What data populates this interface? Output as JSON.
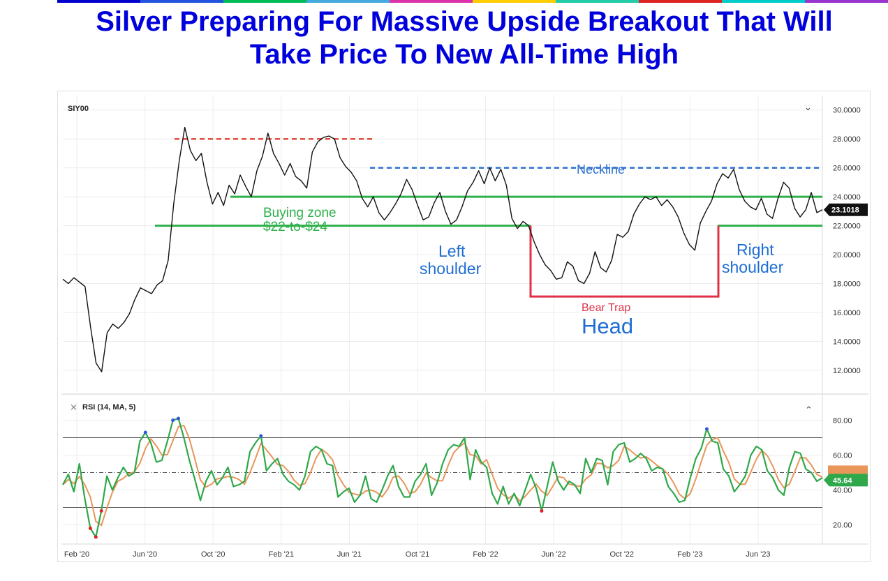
{
  "headline": {
    "line1": "Silver Preparing For Massive Upside Breakout That Will",
    "line2": "Take Price To New All-Time High"
  },
  "colors": {
    "headline": "#0000dd",
    "price_line": "#111111",
    "rsi_line": "#2ea84a",
    "rsi_ma": "#e8965a",
    "buy_zone": "#2db04a",
    "resistance": "#e05040",
    "neckline": "#2a6fd0",
    "bear_trap": "#e03048",
    "annotation_blue": "#1f6ed4",
    "top_bar": [
      "#0000cc",
      "#2255dd",
      "#00bb55",
      "#44aadd",
      "#dd33aa",
      "#ffcc00",
      "#22ccaa",
      "#dd2222",
      "#00cccc",
      "#9933cc"
    ]
  },
  "chart_data": [
    {
      "type": "line",
      "symbol": "SIY00",
      "x_tick_labels": [
        "Feb '20",
        "Jun '20",
        "Oct '20",
        "Feb '21",
        "Jun '21",
        "Oct '21",
        "Feb '22",
        "Jun '22",
        "Oct '22",
        "Feb '23",
        "Jun '23"
      ],
      "y_tick_labels": [
        "30.0000",
        "28.0000",
        "26.0000",
        "24.0000",
        "22.0000",
        "20.0000",
        "18.0000",
        "16.0000",
        "14.0000",
        "12.0000"
      ],
      "ylim": [
        10.5,
        31
      ],
      "last_price": "23.1018",
      "series": [
        {
          "values": [
            18.3,
            18.0,
            18.4,
            18.1,
            17.8,
            15.0,
            12.5,
            11.9,
            14.6,
            15.2,
            14.9,
            15.3,
            15.9,
            16.9,
            17.7,
            17.5,
            17.3,
            17.9,
            18.2,
            19.6,
            23.5,
            26.5,
            28.8,
            27.2,
            26.5,
            27.0,
            25.0,
            23.5,
            24.3,
            23.4,
            24.8,
            24.2,
            25.5,
            24.7,
            24.0,
            25.8,
            26.8,
            28.4,
            27.0,
            26.3,
            25.5,
            26.3,
            25.4,
            25.1,
            24.6,
            27.1,
            27.8,
            28.1,
            28.2,
            28.0,
            26.7,
            26.1,
            25.7,
            25.1,
            23.9,
            23.3,
            24.0,
            22.9,
            22.4,
            22.9,
            23.5,
            24.2,
            25.2,
            24.5,
            23.4,
            22.4,
            22.6,
            23.6,
            24.3,
            23.0,
            22.1,
            22.4,
            23.3,
            24.4,
            25.0,
            25.8,
            24.9,
            26.0,
            25.1,
            25.9,
            24.8,
            22.5,
            21.8,
            22.3,
            22.0,
            20.9,
            20.0,
            19.3,
            18.9,
            18.3,
            18.4,
            19.5,
            19.2,
            18.2,
            18.0,
            18.7,
            20.2,
            19.1,
            18.8,
            19.6,
            21.4,
            21.2,
            21.6,
            22.8,
            23.5,
            24.0,
            23.8,
            24.0,
            23.4,
            23.8,
            23.3,
            22.6,
            21.5,
            20.7,
            20.3,
            22.2,
            23.0,
            23.7,
            24.9,
            25.6,
            25.3,
            25.9,
            24.5,
            23.7,
            23.3,
            23.1,
            23.9,
            22.8,
            22.5,
            23.9,
            25.0,
            24.6,
            23.2,
            22.6,
            23.1,
            24.3,
            22.9,
            23.1
          ]
        },
        {
          "name": "RSI (14, MA, 5)",
          "values": [
            43,
            49,
            39,
            55,
            35,
            18,
            13,
            28,
            48,
            40,
            47,
            53,
            48,
            50,
            68,
            73,
            67,
            56,
            57,
            68,
            80,
            81,
            70,
            57,
            46,
            34,
            45,
            51,
            43,
            47,
            53,
            42,
            43,
            45,
            62,
            67,
            71,
            51,
            55,
            58,
            49,
            45,
            43,
            40,
            48,
            62,
            65,
            63,
            55,
            54,
            36,
            39,
            41,
            33,
            37,
            48,
            35,
            33,
            40,
            48,
            54,
            42,
            36,
            36,
            45,
            49,
            55,
            37,
            44,
            55,
            63,
            66,
            65,
            70,
            46,
            63,
            56,
            53,
            38,
            32,
            42,
            32,
            38,
            31,
            40,
            49,
            41,
            28,
            42,
            56,
            45,
            40,
            45,
            43,
            38,
            58,
            50,
            58,
            57,
            43,
            62,
            66,
            67,
            56,
            58,
            61,
            58,
            51,
            53,
            52,
            42,
            38,
            33,
            34,
            47,
            58,
            64,
            75,
            68,
            67,
            52,
            48,
            39,
            43,
            48,
            60,
            65,
            63,
            51,
            47,
            40,
            37,
            53,
            62,
            61,
            52,
            50,
            45,
            47
          ]
        }
      ],
      "rsi_ylim": [
        9,
        91
      ],
      "rsi_tick_labels": [
        "80.00",
        "60.00",
        "40.00",
        "20.00"
      ],
      "rsi_last": "45.64",
      "annotations": {
        "buying_zone_l1": "Buying zone",
        "buying_zone_l2": "$22-to-$24",
        "neckline": "Neckline",
        "left_shoulder_l1": "Left",
        "left_shoulder_l2": "shoulder",
        "right_shoulder_l1": "Right",
        "right_shoulder_l2": "shoulder",
        "bear_trap": "Bear Trap",
        "head": "Head",
        "collapse_glyph": "⌄",
        "expand_glyph": "⌃",
        "close_glyph": "×",
        "rsi_label": "RSI (14, MA, 5)"
      },
      "levels": {
        "resistance": 28,
        "neckline": 26,
        "zone_top": 24,
        "zone_bottom": 22,
        "bear_trap_low": 17.1
      }
    }
  ]
}
